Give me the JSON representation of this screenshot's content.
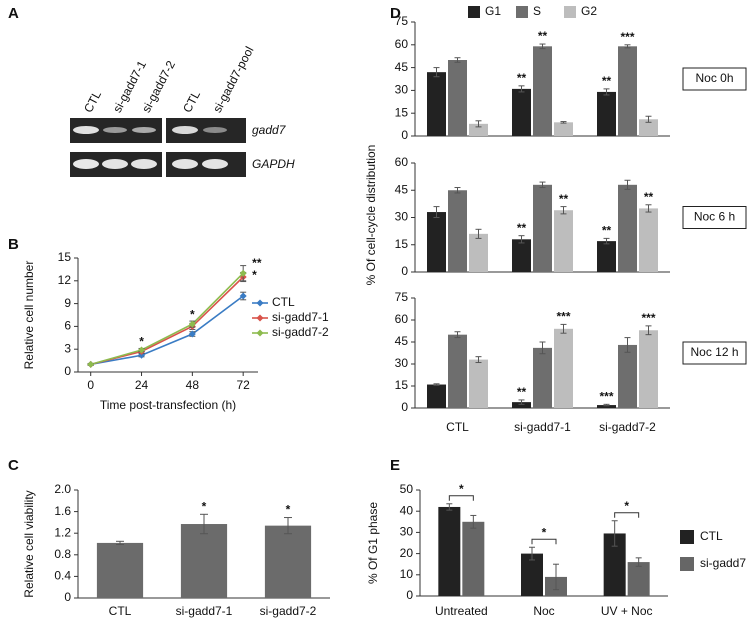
{
  "gel": {
    "panel": "A",
    "lanes": [
      "CTL",
      "si-gadd7-1",
      "si-gadd7-2",
      "CTL",
      "si-gadd7-pool"
    ],
    "rows": [
      "gadd7",
      "GAPDH"
    ]
  },
  "chart_data": [
    {
      "type": "line",
      "panel": "B",
      "x": [
        0,
        24,
        48,
        72
      ],
      "xlim": [
        -6,
        79
      ],
      "xticks": [
        0,
        24,
        48,
        72
      ],
      "ylim": [
        0,
        15
      ],
      "yticks": [
        0,
        3,
        6,
        9,
        12,
        15
      ],
      "xlabel": "Time post-transfection (h)",
      "ylabel": "Relative cell number",
      "series": [
        {
          "name": "CTL",
          "color": "#3a7cc4",
          "values": [
            1,
            2.2,
            5,
            10
          ],
          "errors": [
            0.1,
            0.2,
            0.3,
            0.5
          ]
        },
        {
          "name": "si-gadd7-1",
          "color": "#d9534a",
          "values": [
            1,
            2.7,
            6,
            12.5
          ],
          "errors": [
            0.1,
            0.2,
            0.4,
            0.6
          ]
        },
        {
          "name": "si-gadd7-2",
          "color": "#8dbb4e",
          "values": [
            1,
            2.9,
            6.3,
            13
          ],
          "errors": [
            0.1,
            0.2,
            0.4,
            1
          ]
        }
      ],
      "annotations": [
        {
          "x": 24,
          "text": "*"
        },
        {
          "x": 48,
          "text": "*"
        },
        {
          "x": 72,
          "text": "**"
        },
        {
          "x": 72,
          "text": "*"
        }
      ]
    },
    {
      "type": "bar",
      "panel": "C",
      "categories": [
        "CTL",
        "si-gadd7-1",
        "si-gadd7-2"
      ],
      "values": [
        1.02,
        1.37,
        1.34
      ],
      "errors": [
        0.03,
        0.18,
        0.15
      ],
      "stars": [
        null,
        "*",
        "*"
      ],
      "color": "#6b6b6b",
      "ylim": [
        0,
        2
      ],
      "yticks": [
        0,
        0.4,
        0.8,
        1.2,
        1.6,
        {
          "value": 2,
          "label": "2.0"
        }
      ],
      "ylabel": "Relative cell viability"
    },
    {
      "type": "grouped_bar",
      "panel": "D",
      "categories": [
        "CTL",
        "si-gadd7-1",
        "si-gadd7-2"
      ],
      "ylabel": "% Of cell-cycle distribution",
      "legend": [
        {
          "name": "G1",
          "color": "#222222"
        },
        {
          "name": "S",
          "color": "#6e6e6e"
        },
        {
          "name": "G2",
          "color": "#bdbdbd"
        }
      ],
      "subplots": [
        {
          "label": "Noc 0h",
          "ylim": [
            0,
            75
          ],
          "yticks": [
            0,
            15,
            30,
            45,
            60,
            75
          ],
          "series": [
            {
              "values": [
                42,
                31,
                29
              ],
              "errors": [
                3,
                2,
                2
              ],
              "stars": [
                null,
                "**",
                "**"
              ]
            },
            {
              "values": [
                50,
                59,
                59
              ],
              "errors": [
                1.5,
                1.5,
                1
              ],
              "stars": [
                null,
                "**",
                "***"
              ]
            },
            {
              "values": [
                8,
                9,
                11
              ],
              "errors": [
                2,
                0.5,
                2
              ]
            }
          ]
        },
        {
          "label": "Noc 6 h",
          "ylim": [
            0,
            60
          ],
          "yticks": [
            0,
            15,
            30,
            45,
            60
          ],
          "series": [
            {
              "values": [
                33,
                18,
                17
              ],
              "errors": [
                3,
                2,
                1.5
              ],
              "stars": [
                null,
                "**",
                "**"
              ]
            },
            {
              "values": [
                45,
                48,
                48
              ],
              "errors": [
                1.5,
                1.5,
                2.5
              ]
            },
            {
              "values": [
                21,
                34,
                35
              ],
              "errors": [
                2.5,
                2,
                2
              ],
              "stars": [
                null,
                "**",
                "**"
              ]
            }
          ]
        },
        {
          "label": "Noc 12 h",
          "ylim": [
            0,
            75
          ],
          "yticks": [
            0,
            15,
            30,
            45,
            60,
            75
          ],
          "series": [
            {
              "values": [
                16,
                4,
                2
              ],
              "errors": [
                0.5,
                1.5,
                0.5
              ],
              "stars": [
                null,
                "**",
                "***"
              ]
            },
            {
              "values": [
                50,
                41,
                43
              ],
              "errors": [
                2,
                4,
                5
              ]
            },
            {
              "values": [
                33,
                54,
                53
              ],
              "errors": [
                2,
                3,
                3
              ],
              "stars": [
                null,
                "***",
                "***"
              ]
            }
          ]
        }
      ]
    },
    {
      "type": "grouped_bar",
      "panel": "E",
      "categories": [
        "Untreated",
        "Noc",
        "UV + Noc"
      ],
      "ylabel": "% Of G1 phase",
      "ylim": [
        0,
        50
      ],
      "yticks": [
        0,
        10,
        20,
        30,
        40,
        50
      ],
      "series": [
        {
          "name": "CTL",
          "color": "#222222",
          "values": [
            42,
            20,
            29.5
          ],
          "errors": [
            1.5,
            3,
            6
          ]
        },
        {
          "name": "si-gadd7",
          "color": "#666666",
          "values": [
            35,
            9,
            16
          ],
          "errors": [
            3,
            6,
            2
          ]
        }
      ],
      "brackets": [
        "*",
        "*",
        "*"
      ]
    }
  ]
}
